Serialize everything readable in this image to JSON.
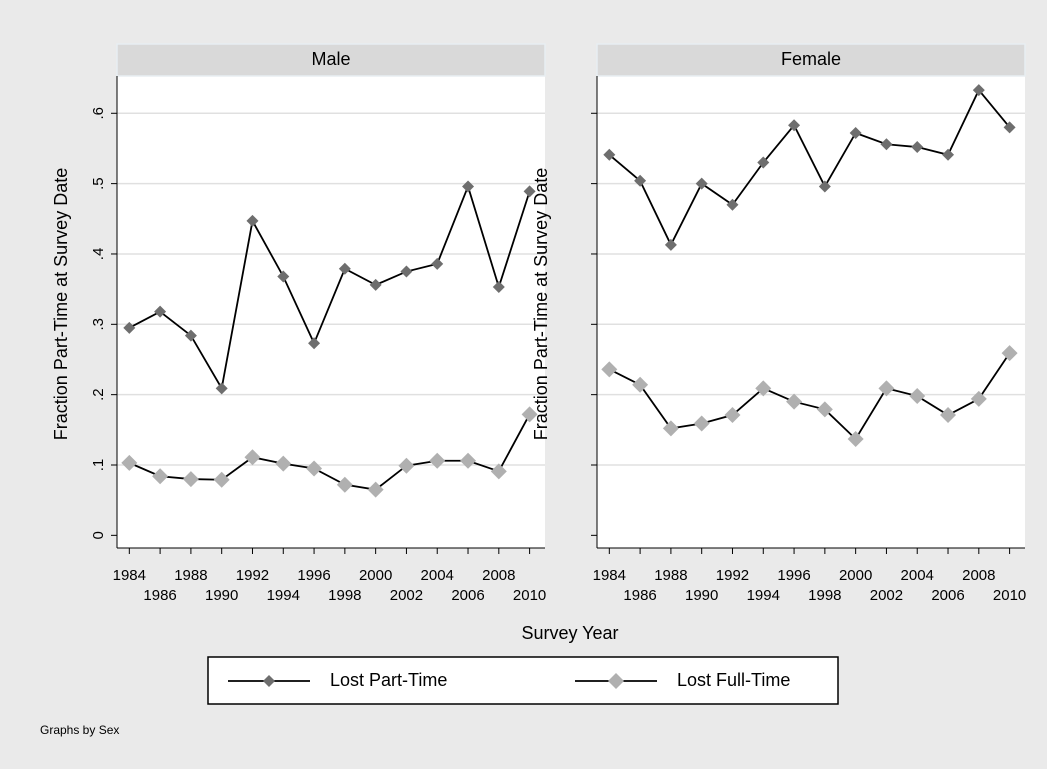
{
  "chart_data": [
    {
      "type": "line",
      "title": "Male",
      "ylabel": "Fraction Part-Time at Survey Date",
      "x": [
        1984,
        1986,
        1988,
        1990,
        1992,
        1994,
        1996,
        1998,
        2000,
        2002,
        2004,
        2006,
        2008,
        2010
      ],
      "xlim": [
        1983.2,
        2011
      ],
      "ylim": [
        -0.018,
        0.653
      ],
      "yticks": [
        0,
        {
          "value": 0.1,
          "label": ".1"
        },
        {
          "value": 0.2,
          "label": ".2"
        },
        {
          "value": 0.3,
          "label": ".3"
        },
        {
          "value": 0.4,
          "label": ".4"
        },
        {
          "value": 0.5,
          "label": ".5"
        },
        {
          "value": 0.6,
          "label": ".6"
        }
      ],
      "ytick_labels": true,
      "grid": true,
      "series": [
        {
          "name": "Lost Part-Time",
          "color": "#6e6e6e",
          "values": [
            0.295,
            0.318,
            0.284,
            0.209,
            0.447,
            0.368,
            0.273,
            0.379,
            0.356,
            0.375,
            0.386,
            0.496,
            0.353,
            0.489
          ]
        },
        {
          "name": "Lost Full-Time",
          "color": "#b0b0b0",
          "values": [
            0.103,
            0.084,
            0.08,
            0.079,
            0.111,
            0.102,
            0.095,
            0.072,
            0.065,
            0.099,
            0.106,
            0.106,
            0.091,
            0.172
          ]
        }
      ]
    },
    {
      "type": "line",
      "title": "Female",
      "ylabel": "Fraction Part-Time at Survey Date",
      "x": [
        1984,
        1986,
        1988,
        1990,
        1992,
        1994,
        1996,
        1998,
        2000,
        2002,
        2004,
        2006,
        2008,
        2010
      ],
      "xlim": [
        1983.2,
        2011
      ],
      "ylim": [
        -0.018,
        0.653
      ],
      "yticks": [
        0,
        0.1,
        0.2,
        0.3,
        0.4,
        0.5,
        0.6
      ],
      "ytick_labels": false,
      "grid": true,
      "series": [
        {
          "name": "Lost Part-Time",
          "color": "#6e6e6e",
          "values": [
            0.541,
            0.504,
            0.413,
            0.5,
            0.47,
            0.53,
            0.583,
            0.496,
            0.572,
            0.556,
            0.552,
            0.541,
            0.633,
            0.58
          ]
        },
        {
          "name": "Lost Full-Time",
          "color": "#b0b0b0",
          "values": [
            0.236,
            0.214,
            0.152,
            0.159,
            0.171,
            0.209,
            0.19,
            0.179,
            0.137,
            0.209,
            0.198,
            0.171,
            0.194,
            0.259
          ]
        }
      ]
    }
  ],
  "xlabel": "Survey Year",
  "note": "Graphs by Sex"
}
